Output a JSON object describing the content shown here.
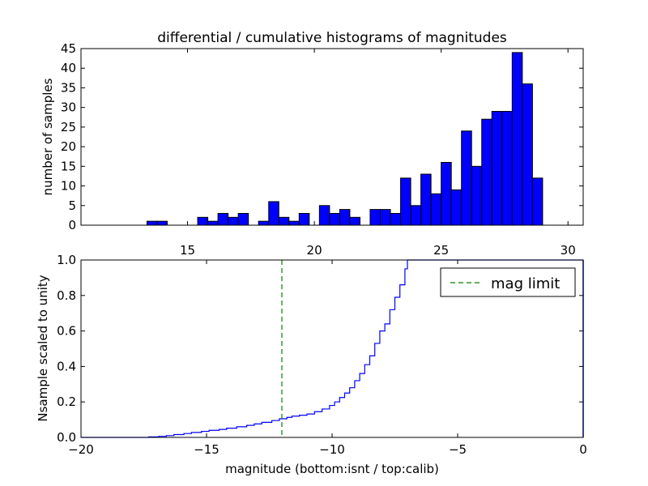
{
  "chart_data": [
    {
      "type": "bar",
      "title": "differential / cumulative histograms of magnitudes",
      "xlabel": "",
      "ylabel": "number of samples",
      "xlim": [
        10.8,
        30.6
      ],
      "ylim": [
        0,
        45
      ],
      "xticks": [
        15,
        20,
        25,
        30
      ],
      "yticks": [
        0,
        5,
        10,
        15,
        20,
        25,
        30,
        35,
        40,
        45
      ],
      "x_tick_labels_position": "bottom",
      "bar_color": "#0000ff",
      "bin_width": 0.4,
      "bins": [
        {
          "start": 13.4,
          "count": 1
        },
        {
          "start": 13.8,
          "count": 1
        },
        {
          "start": 15.4,
          "count": 2
        },
        {
          "start": 15.8,
          "count": 1
        },
        {
          "start": 16.2,
          "count": 3
        },
        {
          "start": 16.6,
          "count": 2
        },
        {
          "start": 17.0,
          "count": 3
        },
        {
          "start": 17.8,
          "count": 1
        },
        {
          "start": 18.2,
          "count": 6
        },
        {
          "start": 18.6,
          "count": 2
        },
        {
          "start": 19.0,
          "count": 1
        },
        {
          "start": 19.4,
          "count": 3
        },
        {
          "start": 20.2,
          "count": 5
        },
        {
          "start": 20.6,
          "count": 3
        },
        {
          "start": 21.0,
          "count": 4
        },
        {
          "start": 21.4,
          "count": 2
        },
        {
          "start": 22.2,
          "count": 4
        },
        {
          "start": 22.6,
          "count": 4
        },
        {
          "start": 23.0,
          "count": 3
        },
        {
          "start": 23.4,
          "count": 12
        },
        {
          "start": 23.8,
          "count": 5
        },
        {
          "start": 24.2,
          "count": 13
        },
        {
          "start": 24.6,
          "count": 8
        },
        {
          "start": 25.0,
          "count": 16
        },
        {
          "start": 25.4,
          "count": 9
        },
        {
          "start": 25.8,
          "count": 24
        },
        {
          "start": 26.2,
          "count": 15
        },
        {
          "start": 26.6,
          "count": 27
        },
        {
          "start": 27.0,
          "count": 29
        },
        {
          "start": 27.4,
          "count": 29
        },
        {
          "start": 27.8,
          "count": 44
        },
        {
          "start": 28.2,
          "count": 36
        },
        {
          "start": 28.6,
          "count": 12
        }
      ]
    },
    {
      "type": "line",
      "xlabel": "magnitude (bottom:isnt / top:calib)",
      "ylabel": "Nsample scaled to unity",
      "xlim": [
        -20,
        0
      ],
      "ylim": [
        0,
        1
      ],
      "xticks": [
        -20,
        -15,
        -10,
        -5,
        0
      ],
      "yticks": [
        0.0,
        0.2,
        0.4,
        0.6,
        0.8,
        1.0
      ],
      "xtick_labels": [
        "−20",
        "−15",
        "−10",
        "−5",
        "0"
      ],
      "ytick_labels": [
        "0.0",
        "0.2",
        "0.4",
        "0.6",
        "0.8",
        "1.0"
      ],
      "line_color": "#0000ff",
      "legend_position": "top-right",
      "series": [
        {
          "step": true,
          "x": [
            -20,
            -17.3,
            -16.9,
            -16.6,
            -16.3,
            -15.9,
            -15.6,
            -15.2,
            -14.9,
            -14.5,
            -14.2,
            -13.8,
            -13.4,
            -13.1,
            -12.8,
            -12.4,
            -12.1,
            -11.8,
            -11.6,
            -11.3,
            -11.0,
            -10.7,
            -10.4,
            -10.1,
            -9.9,
            -9.7,
            -9.5,
            -9.3,
            -9.1,
            -8.9,
            -8.7,
            -8.5,
            -8.3,
            -8.1,
            -7.9,
            -7.7,
            -7.5,
            -7.3,
            -7.1,
            -7.0
          ],
          "y": [
            0.0,
            0.003,
            0.006,
            0.01,
            0.016,
            0.022,
            0.028,
            0.034,
            0.04,
            0.045,
            0.052,
            0.06,
            0.068,
            0.076,
            0.085,
            0.095,
            0.105,
            0.113,
            0.12,
            0.125,
            0.132,
            0.145,
            0.16,
            0.18,
            0.2,
            0.225,
            0.25,
            0.28,
            0.32,
            0.36,
            0.41,
            0.46,
            0.53,
            0.6,
            0.64,
            0.72,
            0.79,
            0.86,
            0.95,
            1.0
          ]
        },
        {
          "name": "mag limit",
          "type": "vline",
          "x": -12,
          "color": "#008000",
          "dashed": true
        }
      ]
    }
  ]
}
